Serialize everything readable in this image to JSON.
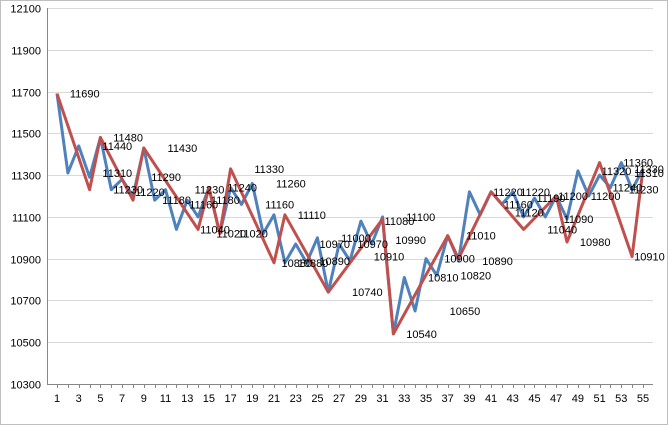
{
  "chart_data": {
    "type": "line",
    "title": "",
    "xlabel": "",
    "ylabel": "",
    "x": [
      1,
      2,
      3,
      4,
      5,
      6,
      7,
      8,
      9,
      10,
      11,
      12,
      13,
      14,
      15,
      16,
      17,
      18,
      19,
      20,
      21,
      22,
      23,
      24,
      25,
      26,
      27,
      28,
      29,
      30,
      31,
      32,
      33,
      34,
      35,
      36,
      37,
      38,
      39,
      40,
      41,
      42,
      43,
      44,
      45,
      46,
      47,
      48,
      49,
      50,
      51,
      52,
      53,
      54,
      55
    ],
    "x_tick_labels": [
      "1",
      "3",
      "5",
      "7",
      "9",
      "11",
      "13",
      "15",
      "17",
      "19",
      "21",
      "23",
      "25",
      "27",
      "29",
      "31",
      "33",
      "35",
      "37",
      "39",
      "41",
      "43",
      "45",
      "47",
      "49",
      "51",
      "53",
      "55"
    ],
    "ylim": [
      10300,
      12100
    ],
    "y_ticks": [
      10300,
      10500,
      10700,
      10900,
      11100,
      11300,
      11500,
      11700,
      11900,
      12100
    ],
    "grid": true,
    "legend": "none",
    "series": [
      {
        "color": "#4f81bd",
        "values": [
          11690,
          11310,
          11440,
          11290,
          11480,
          11230,
          11280,
          11200,
          11430,
          11180,
          11230,
          11040,
          11180,
          11100,
          11240,
          11020,
          11240,
          11160,
          11260,
          11020,
          11110,
          10880,
          10970,
          10880,
          11000,
          10740,
          10970,
          10890,
          11080,
          10970,
          11100,
          10540,
          10810,
          10650,
          10900,
          10820,
          11010,
          10890,
          11220,
          11110,
          11220,
          11160,
          11220,
          11100,
          11190,
          11100,
          11200,
          11090,
          11320,
          11200,
          11300,
          11240,
          11360,
          11230,
          11330
        ]
      },
      {
        "color": "#c0504d",
        "values": [
          11690,
          null,
          null,
          11230,
          11480,
          null,
          null,
          11180,
          11430,
          null,
          null,
          null,
          null,
          11040,
          11240,
          11020,
          11330,
          null,
          null,
          null,
          10880,
          11110,
          null,
          null,
          null,
          10740,
          null,
          null,
          null,
          null,
          11090,
          10540,
          null,
          null,
          null,
          null,
          11010,
          10900,
          null,
          null,
          11220,
          null,
          null,
          11040,
          null,
          null,
          11200,
          10980,
          null,
          null,
          11360,
          null,
          null,
          10910,
          11330
        ]
      }
    ],
    "data_labels": [
      {
        "x": 2,
        "y": 11690,
        "text": "11690"
      },
      {
        "x": 5,
        "y": 11440,
        "text": "11440"
      },
      {
        "x": 5,
        "y": 11310,
        "text": "11310"
      },
      {
        "x": 6,
        "y": 11480,
        "text": "11480"
      },
      {
        "x": 6,
        "y": 11230,
        "text": "11230"
      },
      {
        "x": 8,
        "y": 11220,
        "text": "11220"
      },
      {
        "x": 9.5,
        "y": 11290,
        "text": "11290"
      },
      {
        "x": 11,
        "y": 11430,
        "text": "11430"
      },
      {
        "x": 10.5,
        "y": 11180,
        "text": "11180"
      },
      {
        "x": 13.5,
        "y": 11230,
        "text": "11230"
      },
      {
        "x": 13,
        "y": 11160,
        "text": "11160"
      },
      {
        "x": 15,
        "y": 11180,
        "text": "11180"
      },
      {
        "x": 14,
        "y": 11040,
        "text": "11040"
      },
      {
        "x": 15.5,
        "y": 11020,
        "text": "11020"
      },
      {
        "x": 16.5,
        "y": 11240,
        "text": "11240"
      },
      {
        "x": 17.5,
        "y": 11020,
        "text": "11020"
      },
      {
        "x": 19,
        "y": 11330,
        "text": "11330"
      },
      {
        "x": 21,
        "y": 11260,
        "text": "11260"
      },
      {
        "x": 20,
        "y": 11160,
        "text": "11160"
      },
      {
        "x": 23,
        "y": 11110,
        "text": "11110"
      },
      {
        "x": 21.5,
        "y": 10880,
        "text": "10880"
      },
      {
        "x": 23,
        "y": 10880,
        "text": "10880"
      },
      {
        "x": 25,
        "y": 10970,
        "text": "10970"
      },
      {
        "x": 25,
        "y": 10890,
        "text": "10890"
      },
      {
        "x": 27,
        "y": 11000,
        "text": "11000"
      },
      {
        "x": 28.5,
        "y": 10970,
        "text": "10970"
      },
      {
        "x": 28,
        "y": 10740,
        "text": "10740"
      },
      {
        "x": 30,
        "y": 10910,
        "text": "10910"
      },
      {
        "x": 31,
        "y": 11080,
        "text": "11080"
      },
      {
        "x": 33,
        "y": 11100,
        "text": "11100"
      },
      {
        "x": 32,
        "y": 10990,
        "text": "10990"
      },
      {
        "x": 33,
        "y": 10540,
        "text": "10540"
      },
      {
        "x": 35,
        "y": 10810,
        "text": "10810"
      },
      {
        "x": 37,
        "y": 10650,
        "text": "10650"
      },
      {
        "x": 36.5,
        "y": 10900,
        "text": "10900"
      },
      {
        "x": 38,
        "y": 10820,
        "text": "10820"
      },
      {
        "x": 38.5,
        "y": 11010,
        "text": "11010"
      },
      {
        "x": 40,
        "y": 10890,
        "text": "10890"
      },
      {
        "x": 41,
        "y": 11220,
        "text": "11220"
      },
      {
        "x": 42,
        "y": 11160,
        "text": "11160"
      },
      {
        "x": 43.5,
        "y": 11220,
        "text": "11220"
      },
      {
        "x": 43,
        "y": 11120,
        "text": "11120"
      },
      {
        "x": 45,
        "y": 11190,
        "text": "11190"
      },
      {
        "x": 46,
        "y": 11040,
        "text": "11040"
      },
      {
        "x": 47,
        "y": 11200,
        "text": "11200"
      },
      {
        "x": 47.5,
        "y": 11090,
        "text": "11090"
      },
      {
        "x": 49,
        "y": 10980,
        "text": "10980"
      },
      {
        "x": 50,
        "y": 11200,
        "text": "11200"
      },
      {
        "x": 51,
        "y": 11320,
        "text": "11320"
      },
      {
        "x": 52,
        "y": 11240,
        "text": "11240"
      },
      {
        "x": 53,
        "y": 11360,
        "text": "11360"
      },
      {
        "x": 54,
        "y": 11330,
        "text": "11330"
      },
      {
        "x": 54,
        "y": 11310,
        "text": "11310"
      },
      {
        "x": 53.5,
        "y": 11230,
        "text": "11230"
      },
      {
        "x": 54,
        "y": 10910,
        "text": "10910"
      }
    ]
  }
}
